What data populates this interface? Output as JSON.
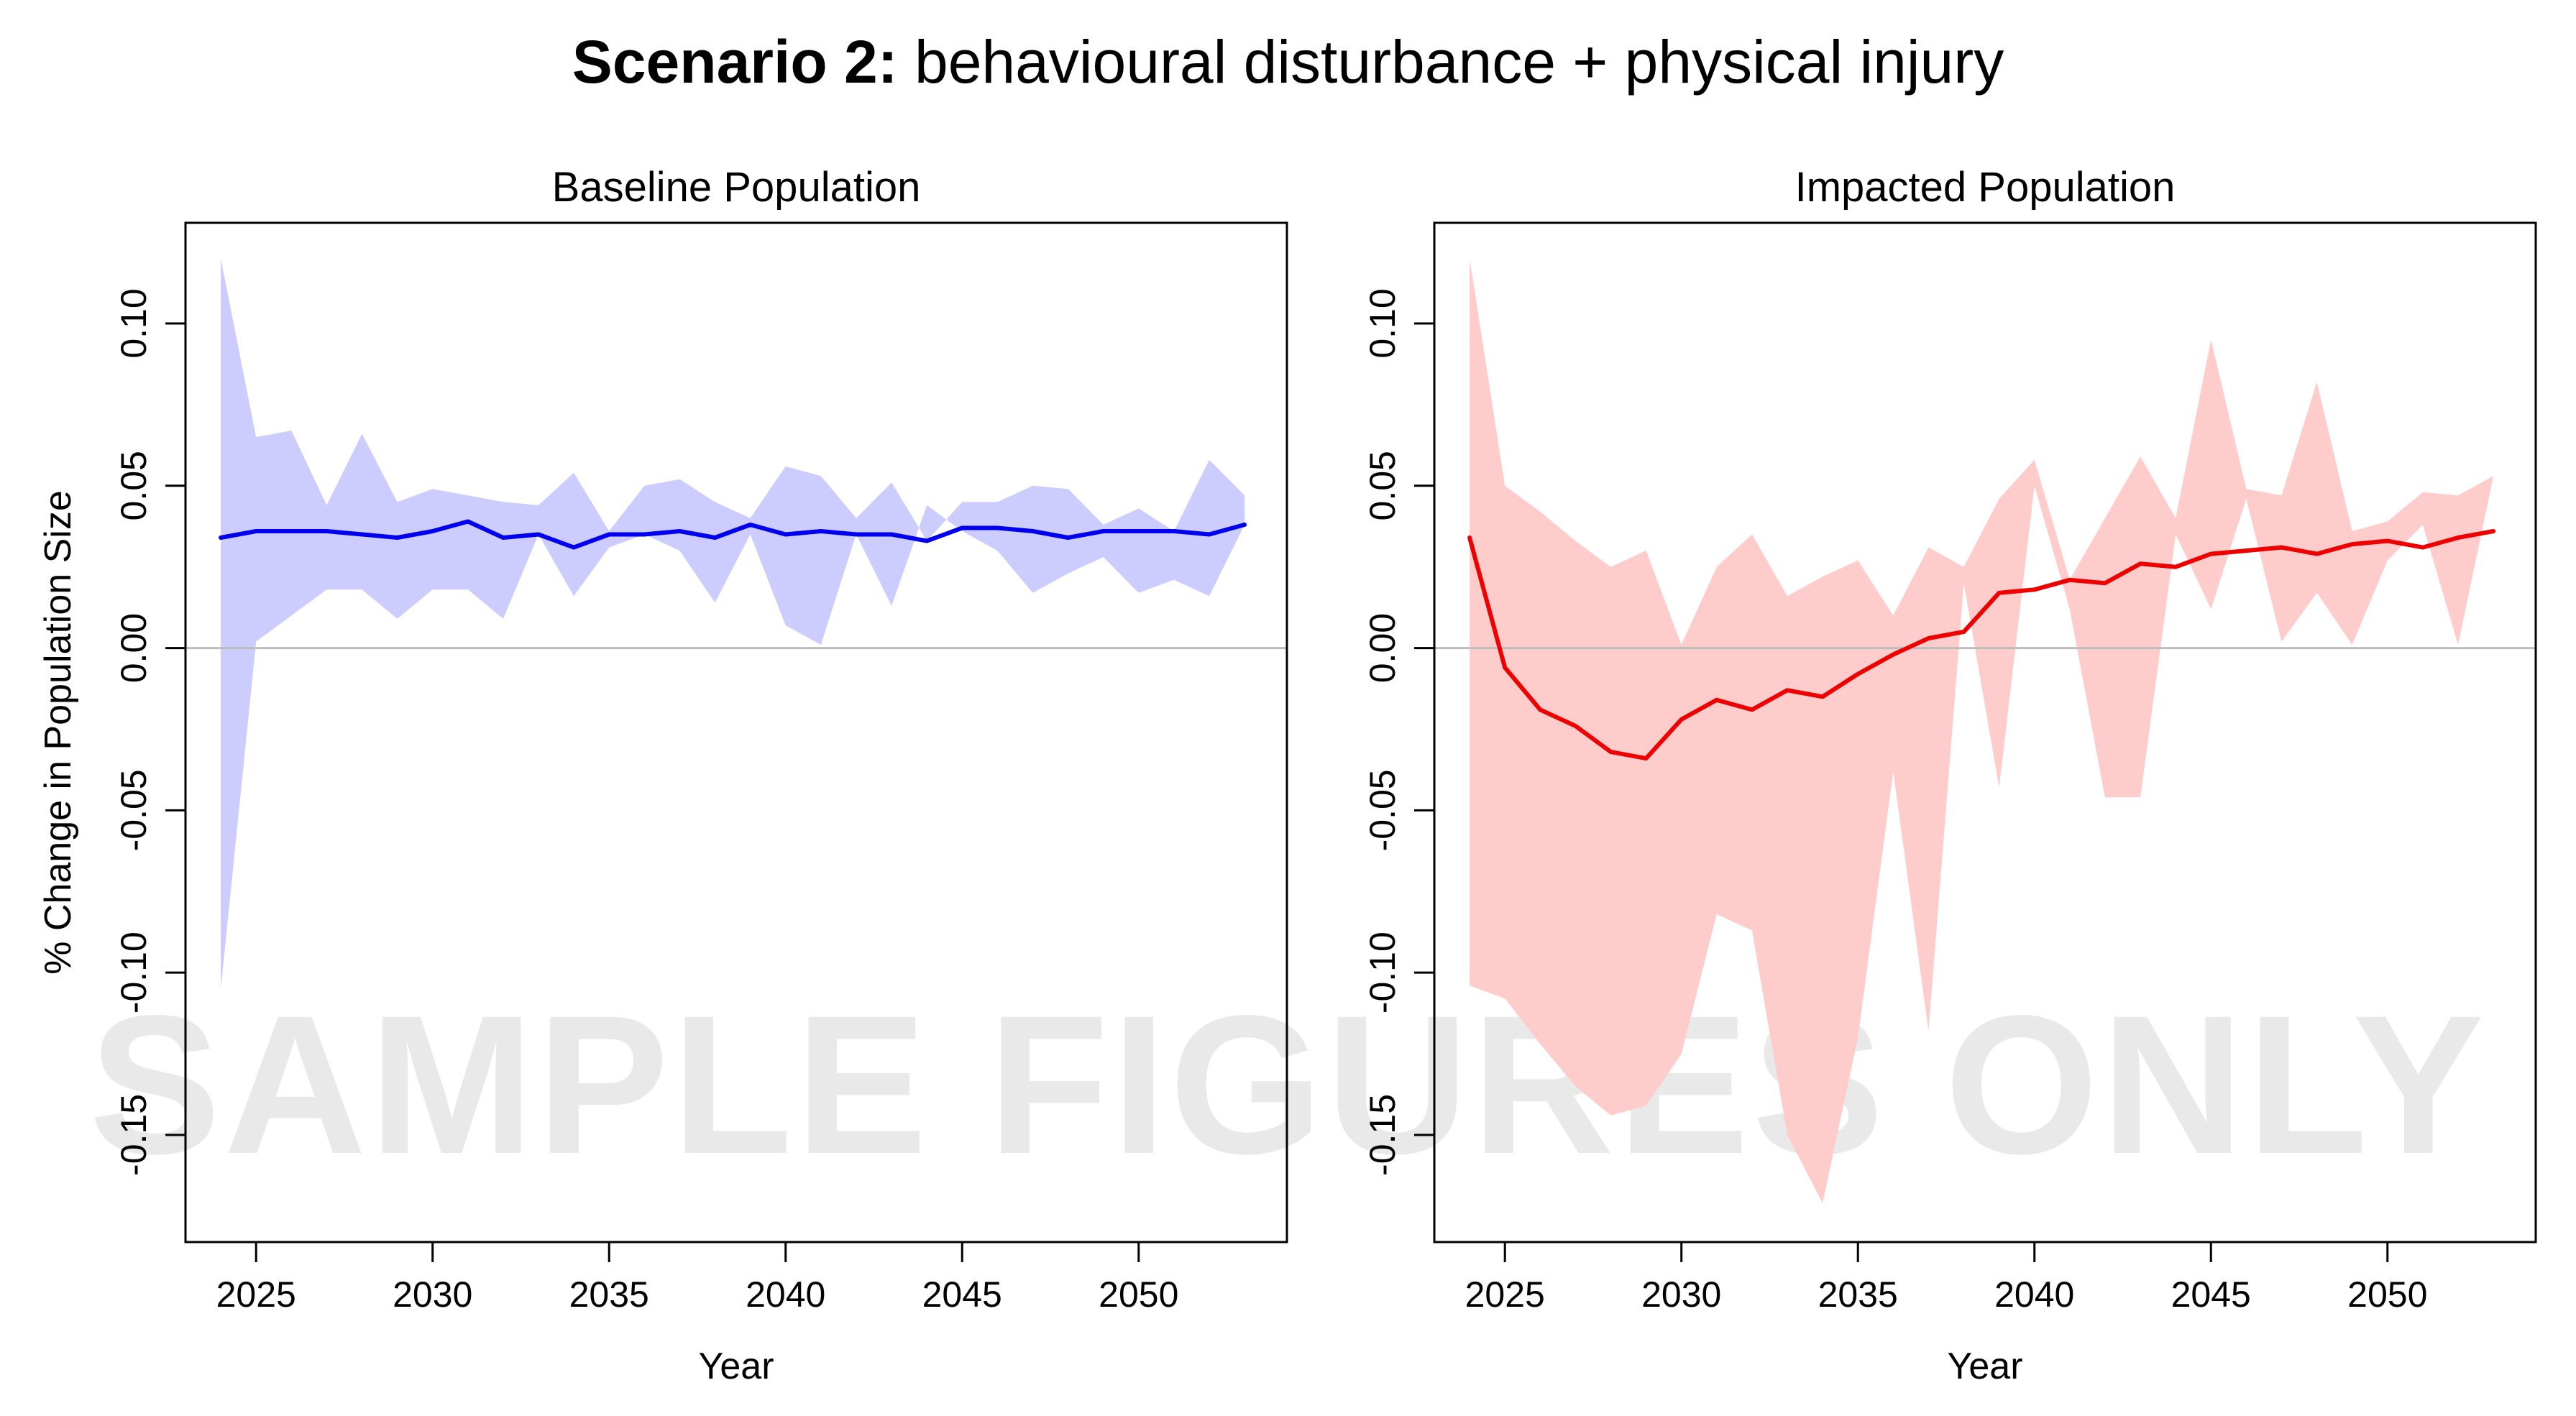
{
  "title": {
    "bold": "Scenario 2:",
    "normal": " behavioural disturbance + physical injury"
  },
  "watermark": "SAMPLE FIGURES ONLY",
  "chart_data": [
    {
      "type": "line",
      "title": "Baseline Population",
      "xlabel": "Year",
      "ylabel": "% Change in Population Size",
      "xlim": [
        2023.0,
        2054.2
      ],
      "ylim": [
        -0.183,
        0.131
      ],
      "x_ticks": [
        "2025",
        "2030",
        "2035",
        "2040",
        "2045",
        "2050"
      ],
      "y_ticks": [
        "-0.15",
        "-0.10",
        "-0.05",
        "0.00",
        "0.05",
        "0.10"
      ],
      "reference_line": 0.0,
      "line_color": "#0000ee",
      "band_color": "#ccccff",
      "x": [
        2024,
        2025,
        2026,
        2027,
        2028,
        2029,
        2030,
        2031,
        2032,
        2033,
        2034,
        2035,
        2036,
        2037,
        2038,
        2039,
        2040,
        2041,
        2042,
        2043,
        2044,
        2045,
        2046,
        2047,
        2048,
        2049,
        2050,
        2051,
        2052,
        2053
      ],
      "series": [
        {
          "role": "mean",
          "values": [
            0.034,
            0.036,
            0.036,
            0.036,
            0.035,
            0.034,
            0.036,
            0.039,
            0.034,
            0.035,
            0.031,
            0.035,
            0.035,
            0.036,
            0.034,
            0.038,
            0.035,
            0.036,
            0.035,
            0.035,
            0.033,
            0.037,
            0.037,
            0.036,
            0.034,
            0.036,
            0.036,
            0.036,
            0.035,
            0.038
          ]
        },
        {
          "role": "upper",
          "values": [
            0.12,
            0.065,
            0.067,
            0.044,
            0.066,
            0.045,
            0.049,
            0.047,
            0.045,
            0.044,
            0.054,
            0.036,
            0.05,
            0.052,
            0.045,
            0.04,
            0.056,
            0.053,
            0.04,
            0.051,
            0.033,
            0.045,
            0.045,
            0.05,
            0.049,
            0.038,
            0.043,
            0.036,
            0.058,
            0.047
          ]
        },
        {
          "role": "lower",
          "values": [
            -0.105,
            0.002,
            0.01,
            0.018,
            0.018,
            0.009,
            0.018,
            0.018,
            0.009,
            0.035,
            0.016,
            0.031,
            0.035,
            0.03,
            0.014,
            0.035,
            0.007,
            0.001,
            0.035,
            0.013,
            0.044,
            0.036,
            0.03,
            0.017,
            0.023,
            0.028,
            0.017,
            0.021,
            0.016,
            0.038
          ]
        }
      ]
    },
    {
      "type": "line",
      "title": "Impacted Population",
      "xlabel": "Year",
      "ylabel": "",
      "xlim": [
        2023.0,
        2054.2
      ],
      "ylim": [
        -0.183,
        0.131
      ],
      "x_ticks": [
        "2025",
        "2030",
        "2035",
        "2040",
        "2045",
        "2050"
      ],
      "y_ticks": [
        "-0.15",
        "-0.10",
        "-0.05",
        "0.00",
        "0.05",
        "0.10"
      ],
      "reference_line": 0.0,
      "line_color": "#ee0000",
      "band_color": "#ffcccc",
      "x": [
        2024,
        2025,
        2026,
        2027,
        2028,
        2029,
        2030,
        2031,
        2032,
        2033,
        2034,
        2035,
        2036,
        2037,
        2038,
        2039,
        2040,
        2041,
        2042,
        2043,
        2044,
        2045,
        2046,
        2047,
        2048,
        2049,
        2050,
        2051,
        2052,
        2053
      ],
      "series": [
        {
          "role": "mean",
          "values": [
            0.034,
            -0.006,
            -0.019,
            -0.024,
            -0.032,
            -0.034,
            -0.022,
            -0.016,
            -0.019,
            -0.013,
            -0.015,
            -0.008,
            -0.002,
            0.003,
            0.005,
            0.017,
            0.018,
            0.021,
            0.02,
            0.026,
            0.025,
            0.029,
            0.03,
            0.031,
            0.029,
            0.032,
            0.033,
            0.031,
            0.034,
            0.036
          ]
        },
        {
          "role": "upper",
          "values": [
            0.12,
            0.05,
            0.042,
            0.033,
            0.025,
            0.03,
            0.001,
            0.025,
            0.035,
            0.016,
            0.022,
            0.027,
            0.01,
            0.031,
            0.025,
            0.046,
            0.058,
            0.021,
            0.04,
            0.059,
            0.04,
            0.095,
            0.049,
            0.047,
            0.082,
            0.036,
            0.039,
            0.048,
            0.047,
            0.053
          ]
        },
        {
          "role": "lower",
          "values": [
            -0.104,
            -0.108,
            -0.122,
            -0.135,
            -0.144,
            -0.141,
            -0.125,
            -0.082,
            -0.087,
            -0.15,
            -0.171,
            -0.12,
            -0.038,
            -0.118,
            0.02,
            -0.043,
            0.05,
            0.012,
            -0.046,
            -0.046,
            0.035,
            0.012,
            0.046,
            0.002,
            0.017,
            0.001,
            0.027,
            0.038,
            0.001,
            0.053
          ]
        }
      ]
    }
  ]
}
